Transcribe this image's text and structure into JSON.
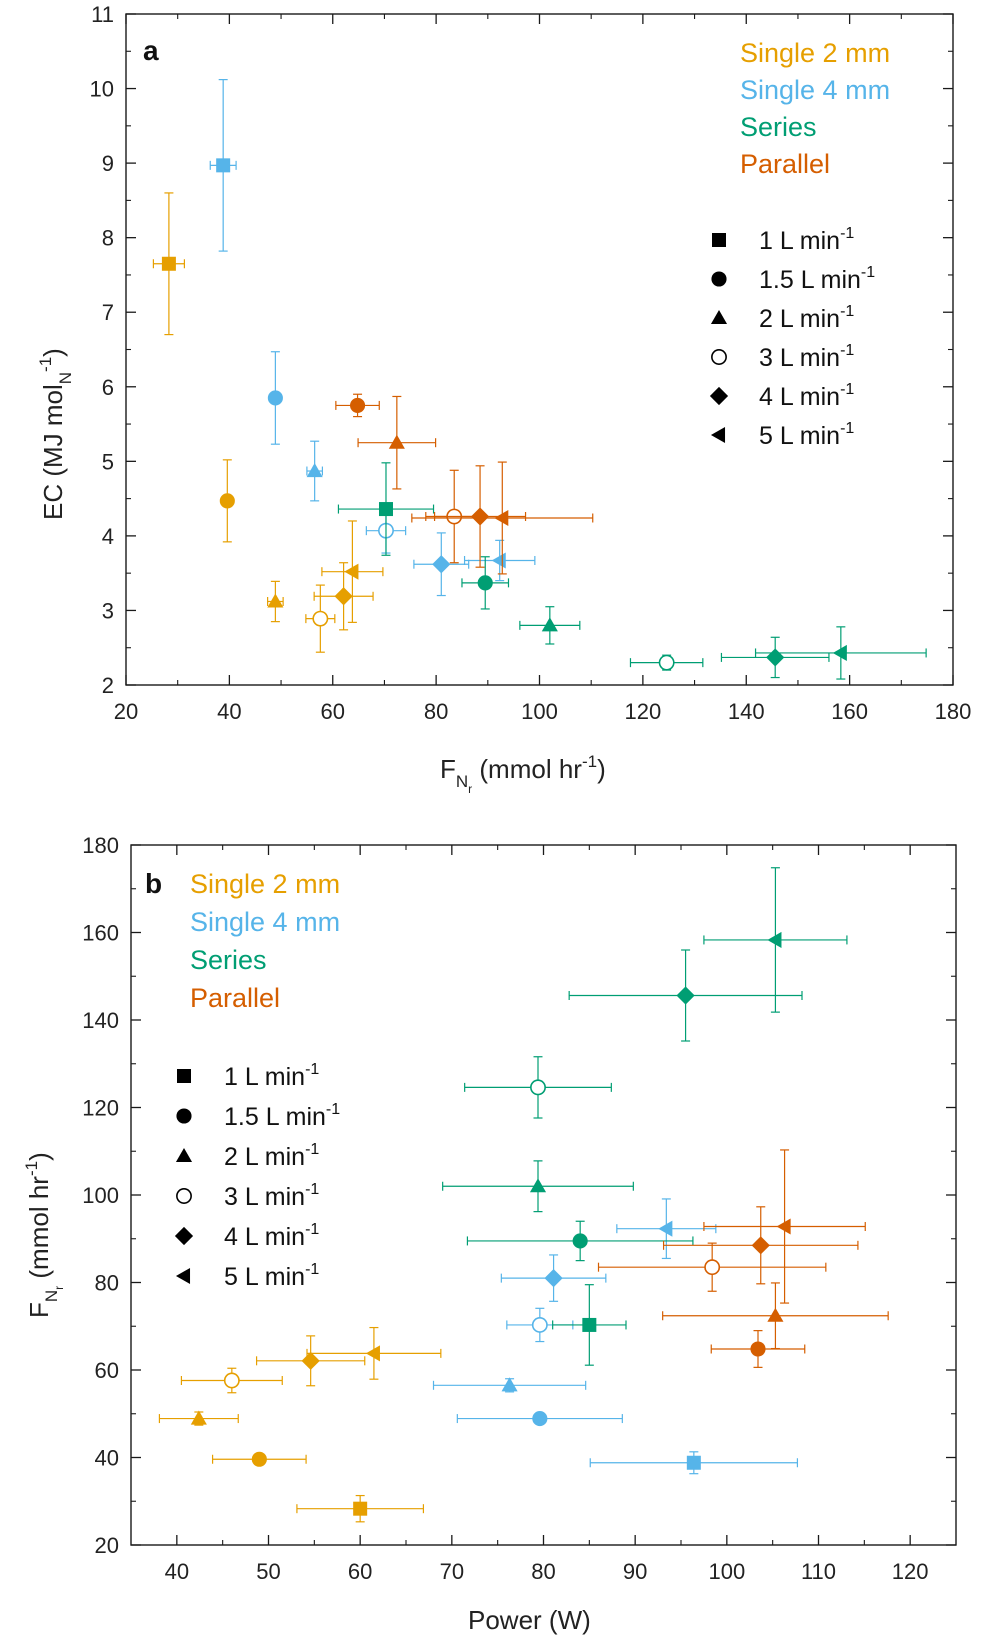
{
  "colors": {
    "single_2mm": "#E69F00",
    "single_4mm": "#56B4E9",
    "series": "#009E73",
    "parallel": "#D55E00"
  },
  "groups": [
    {
      "key": "single_2mm",
      "label": "Single 2 mm"
    },
    {
      "key": "single_4mm",
      "label": "Single 4 mm"
    },
    {
      "key": "series",
      "label": "Series"
    },
    {
      "key": "parallel",
      "label": "Parallel"
    }
  ],
  "flow_legend": [
    {
      "marker": "square",
      "value": "1",
      "unit": "L min",
      "exp": "-1"
    },
    {
      "marker": "circle",
      "value": "1.5",
      "unit": "L min",
      "exp": "-1"
    },
    {
      "marker": "triangle-up",
      "value": "2",
      "unit": "L min",
      "exp": "-1"
    },
    {
      "marker": "circle-open",
      "value": "3",
      "unit": "L min",
      "exp": "-1"
    },
    {
      "marker": "diamond",
      "value": "4",
      "unit": "L min",
      "exp": "-1"
    },
    {
      "marker": "triangle-left",
      "value": "5",
      "unit": "L min",
      "exp": "-1"
    }
  ],
  "chart_data": [
    {
      "panel": "a",
      "type": "scatter",
      "xlabel": {
        "main": "F",
        "sub": "N",
        "subsub": "r",
        "rest": " (mmol hr",
        "exp": "-1",
        "end": ")"
      },
      "ylabel": {
        "main": "EC (MJ mol",
        "sub": "N",
        "exp": "-1",
        "end": ")"
      },
      "xlim": [
        20,
        180
      ],
      "ylim": [
        2,
        11
      ],
      "xticks": [
        20,
        40,
        60,
        80,
        100,
        120,
        140,
        160,
        180
      ],
      "yticks": [
        2,
        3,
        4,
        5,
        6,
        7,
        8,
        9,
        10,
        11
      ],
      "legend_position": "top-right",
      "points": [
        {
          "group": "single_2mm",
          "marker": "square",
          "x": 28.3,
          "y": 7.65,
          "xerr": 3.0,
          "yerr": 0.95
        },
        {
          "group": "single_2mm",
          "marker": "circle",
          "x": 39.6,
          "y": 4.47,
          "xerr": 0,
          "yerr": 0.55
        },
        {
          "group": "single_2mm",
          "marker": "triangle-up",
          "x": 48.9,
          "y": 3.12,
          "xerr": 1.5,
          "yerr": 0.27
        },
        {
          "group": "single_2mm",
          "marker": "circle-open",
          "x": 57.6,
          "y": 2.89,
          "xerr": 2.8,
          "yerr": 0.45
        },
        {
          "group": "single_2mm",
          "marker": "diamond",
          "x": 62.1,
          "y": 3.19,
          "xerr": 5.7,
          "yerr": 0.45
        },
        {
          "group": "single_2mm",
          "marker": "triangle-left",
          "x": 63.8,
          "y": 3.52,
          "xerr": 5.9,
          "yerr": 0.68
        },
        {
          "group": "single_4mm",
          "marker": "square",
          "x": 38.8,
          "y": 8.97,
          "xerr": 2.5,
          "yerr": 1.15
        },
        {
          "group": "single_4mm",
          "marker": "circle",
          "x": 48.9,
          "y": 5.85,
          "xerr": 0,
          "yerr": 0.62
        },
        {
          "group": "single_4mm",
          "marker": "triangle-up",
          "x": 56.5,
          "y": 4.87,
          "xerr": 1.5,
          "yerr": 0.4
        },
        {
          "group": "single_4mm",
          "marker": "circle-open",
          "x": 70.3,
          "y": 4.07,
          "xerr": 3.8,
          "yerr": 0.3
        },
        {
          "group": "single_4mm",
          "marker": "diamond",
          "x": 81.0,
          "y": 3.62,
          "xerr": 5.3,
          "yerr": 0.42
        },
        {
          "group": "single_4mm",
          "marker": "triangle-left",
          "x": 92.3,
          "y": 3.67,
          "xerr": 6.8,
          "yerr": 0.27
        },
        {
          "group": "series",
          "marker": "square",
          "x": 70.3,
          "y": 4.36,
          "xerr": 9.2,
          "yerr": 0.62
        },
        {
          "group": "series",
          "marker": "circle",
          "x": 89.5,
          "y": 3.37,
          "xerr": 4.5,
          "yerr": 0.35
        },
        {
          "group": "series",
          "marker": "triangle-up",
          "x": 102.0,
          "y": 2.8,
          "xerr": 5.8,
          "yerr": 0.25
        },
        {
          "group": "series",
          "marker": "circle-open",
          "x": 124.6,
          "y": 2.3,
          "xerr": 7.0,
          "yerr": 0.1
        },
        {
          "group": "series",
          "marker": "diamond",
          "x": 145.6,
          "y": 2.37,
          "xerr": 10.4,
          "yerr": 0.27
        },
        {
          "group": "series",
          "marker": "triangle-left",
          "x": 158.3,
          "y": 2.43,
          "xerr": 16.5,
          "yerr": 0.35
        },
        {
          "group": "parallel",
          "marker": "circle",
          "x": 64.8,
          "y": 5.75,
          "xerr": 4.2,
          "yerr": 0.15
        },
        {
          "group": "parallel",
          "marker": "triangle-up",
          "x": 72.4,
          "y": 5.25,
          "xerr": 7.5,
          "yerr": 0.62
        },
        {
          "group": "parallel",
          "marker": "circle-open",
          "x": 83.5,
          "y": 4.26,
          "xerr": 5.5,
          "yerr": 0.62
        },
        {
          "group": "parallel",
          "marker": "diamond",
          "x": 88.5,
          "y": 4.26,
          "xerr": 8.8,
          "yerr": 0.68
        },
        {
          "group": "parallel",
          "marker": "triangle-left",
          "x": 92.8,
          "y": 4.24,
          "xerr": 17.5,
          "yerr": 0.75
        }
      ]
    },
    {
      "panel": "b",
      "type": "scatter",
      "xlabel": {
        "main": "Power (W)"
      },
      "ylabel": {
        "main": "F",
        "sub": "N",
        "subsub": "r",
        "rest": " (mmol hr",
        "exp": "-1",
        "end": ")"
      },
      "xlim": [
        35,
        125
      ],
      "ylim": [
        20,
        180
      ],
      "xticks": [
        40,
        50,
        60,
        70,
        80,
        90,
        100,
        110,
        120
      ],
      "yticks": [
        20,
        40,
        60,
        80,
        100,
        120,
        140,
        160,
        180
      ],
      "legend_position": "top-left",
      "points": [
        {
          "group": "single_2mm",
          "marker": "square",
          "x": 60.0,
          "y": 28.3,
          "xerr": 6.9,
          "yerr": 3.0
        },
        {
          "group": "single_2mm",
          "marker": "circle",
          "x": 49.0,
          "y": 39.6,
          "xerr": 5.1,
          "yerr": 0
        },
        {
          "group": "single_2mm",
          "marker": "triangle-up",
          "x": 42.4,
          "y": 48.9,
          "xerr": 4.3,
          "yerr": 1.5
        },
        {
          "group": "single_2mm",
          "marker": "circle-open",
          "x": 46.0,
          "y": 57.6,
          "xerr": 5.5,
          "yerr": 2.8
        },
        {
          "group": "single_2mm",
          "marker": "diamond",
          "x": 54.6,
          "y": 62.1,
          "xerr": 5.9,
          "yerr": 5.7
        },
        {
          "group": "single_2mm",
          "marker": "triangle-left",
          "x": 61.5,
          "y": 63.8,
          "xerr": 7.3,
          "yerr": 5.9
        },
        {
          "group": "single_4mm",
          "marker": "square",
          "x": 96.4,
          "y": 38.8,
          "xerr": 11.3,
          "yerr": 2.5
        },
        {
          "group": "single_4mm",
          "marker": "circle",
          "x": 79.6,
          "y": 48.9,
          "xerr": 9.0,
          "yerr": 0
        },
        {
          "group": "single_4mm",
          "marker": "triangle-up",
          "x": 76.3,
          "y": 56.5,
          "xerr": 8.3,
          "yerr": 1.5
        },
        {
          "group": "single_4mm",
          "marker": "circle-open",
          "x": 79.6,
          "y": 70.3,
          "xerr": 3.6,
          "yerr": 3.8
        },
        {
          "group": "single_4mm",
          "marker": "diamond",
          "x": 81.1,
          "y": 81.0,
          "xerr": 5.7,
          "yerr": 5.3
        },
        {
          "group": "single_4mm",
          "marker": "triangle-left",
          "x": 93.4,
          "y": 92.3,
          "xerr": 5.4,
          "yerr": 6.8
        },
        {
          "group": "series",
          "marker": "square",
          "x": 85.0,
          "y": 70.3,
          "xerr": 4.0,
          "yerr": 9.2
        },
        {
          "group": "series",
          "marker": "circle",
          "x": 84.0,
          "y": 89.5,
          "xerr": 12.3,
          "yerr": 4.5
        },
        {
          "group": "series",
          "marker": "triangle-up",
          "x": 79.4,
          "y": 102.0,
          "xerr": 10.4,
          "yerr": 5.8
        },
        {
          "group": "series",
          "marker": "circle-open",
          "x": 79.4,
          "y": 124.6,
          "xerr": 8.0,
          "yerr": 7.0
        },
        {
          "group": "series",
          "marker": "diamond",
          "x": 95.5,
          "y": 145.6,
          "xerr": 12.7,
          "yerr": 10.4
        },
        {
          "group": "series",
          "marker": "triangle-left",
          "x": 105.3,
          "y": 158.3,
          "xerr": 7.8,
          "yerr": 16.5
        },
        {
          "group": "parallel",
          "marker": "circle",
          "x": 103.4,
          "y": 64.8,
          "xerr": 5.1,
          "yerr": 4.2
        },
        {
          "group": "parallel",
          "marker": "triangle-up",
          "x": 105.3,
          "y": 72.4,
          "xerr": 12.3,
          "yerr": 7.5
        },
        {
          "group": "parallel",
          "marker": "circle-open",
          "x": 98.4,
          "y": 83.5,
          "xerr": 12.4,
          "yerr": 5.5
        },
        {
          "group": "parallel",
          "marker": "diamond",
          "x": 103.7,
          "y": 88.5,
          "xerr": 10.6,
          "yerr": 8.8
        },
        {
          "group": "parallel",
          "marker": "triangle-left",
          "x": 106.3,
          "y": 92.8,
          "xerr": 8.8,
          "yerr": 17.5
        }
      ]
    }
  ]
}
